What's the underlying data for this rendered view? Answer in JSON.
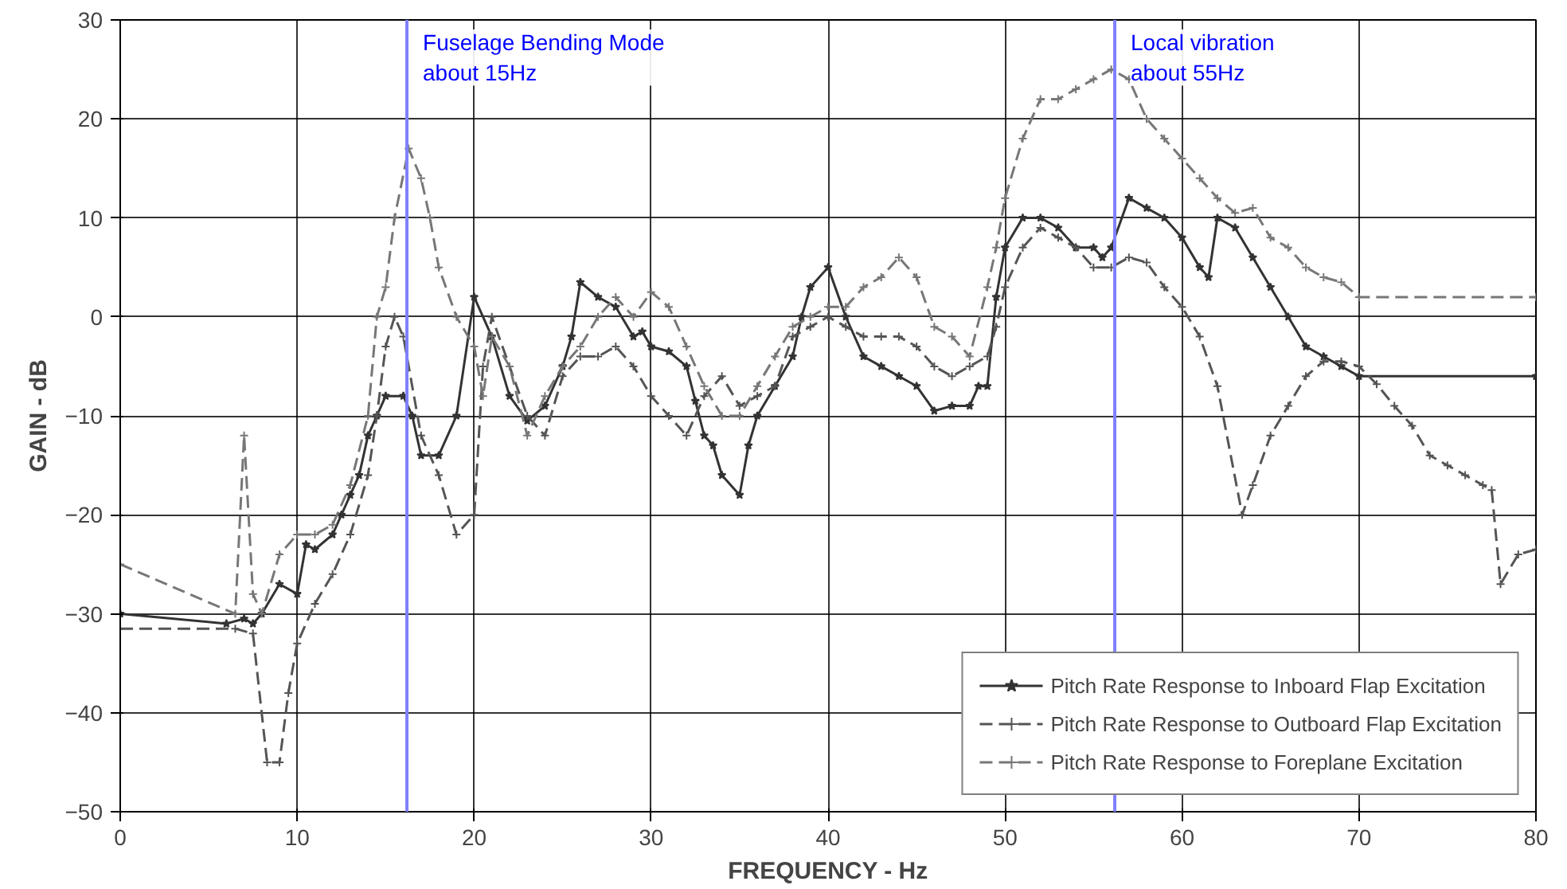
{
  "chart_data": {
    "type": "line",
    "xlabel": "FREQUENCY - Hz",
    "ylabel": "GAIN - dB",
    "xlim": [
      0,
      80
    ],
    "ylim": [
      -50,
      30
    ],
    "xticks": [
      0,
      10,
      20,
      30,
      40,
      50,
      60,
      70,
      80
    ],
    "yticks": [
      -50,
      -40,
      -30,
      -20,
      -10,
      0,
      10,
      20,
      30
    ],
    "grid": true,
    "legend": "bottom right",
    "ref_lines": [
      {
        "axis": "x",
        "value": 16.2,
        "label": "Fuselage Bending Mode\nabout 15Hz",
        "color": "#8080ff"
      },
      {
        "axis": "x",
        "value": 56.2,
        "label": "Local vibration\nabout 55Hz",
        "color": "#8080ff"
      }
    ],
    "series": [
      {
        "name": "Pitch Rate Response to Inboard Flap Excitation",
        "color": "#333333",
        "line_style": "solid",
        "marker": "star",
        "x": [
          0,
          6,
          7,
          7.5,
          8,
          9,
          10,
          10.5,
          11,
          12,
          12.5,
          13,
          13.5,
          14,
          14.5,
          15,
          16,
          16.5,
          17,
          18,
          19,
          20,
          21,
          22,
          23,
          24,
          25,
          25.5,
          26,
          27,
          28,
          29,
          29.5,
          30,
          31,
          32,
          32.5,
          33,
          33.5,
          34,
          35,
          35.5,
          36,
          37,
          38,
          38.5,
          39,
          40,
          41,
          42,
          43,
          44,
          45,
          46,
          47,
          48,
          48.5,
          49,
          49.5,
          50,
          51,
          52,
          53,
          54,
          55,
          55.5,
          56,
          57,
          58,
          59,
          60,
          61,
          61.5,
          62,
          63,
          64,
          65,
          66,
          67,
          68,
          69,
          70,
          80
        ],
        "values": [
          -30,
          -31,
          -30.5,
          -31,
          -30,
          -27,
          -28,
          -23,
          -23.5,
          -22,
          -20,
          -18,
          -16,
          -12,
          -10,
          -8,
          -8,
          -10,
          -14,
          -14,
          -10,
          2,
          -2,
          -8,
          -10.5,
          -9,
          -5,
          -2,
          3.5,
          2,
          1,
          -2,
          -1.5,
          -3,
          -3.5,
          -5,
          -8.5,
          -12,
          -13,
          -16,
          -18,
          -13,
          -10,
          -7,
          -4,
          0,
          3,
          5,
          0,
          -4,
          -5,
          -6,
          -7,
          -9.5,
          -9,
          -9,
          -7,
          -7,
          2,
          7,
          10,
          10,
          9,
          7,
          7,
          6,
          7,
          12,
          11,
          10,
          8,
          5,
          4,
          10,
          9,
          6,
          3,
          0,
          -3,
          -4,
          -5,
          -6,
          -6
        ]
      },
      {
        "name": "Pitch Rate Response to Outboard Flap Excitation",
        "color": "#555555",
        "line_style": "dashed",
        "marker": "cross",
        "x": [
          0,
          6.5,
          7.5,
          8.3,
          9,
          9.5,
          10,
          11,
          12,
          13,
          14,
          14.5,
          15,
          15.5,
          16,
          17,
          18,
          19,
          20,
          20.5,
          21,
          22,
          23,
          24,
          25,
          26,
          27,
          28,
          29,
          30,
          31,
          32,
          33,
          34,
          35,
          36,
          37,
          38,
          39,
          40,
          41,
          42,
          43,
          44,
          45,
          46,
          47,
          48,
          49,
          49.5,
          50,
          51,
          52,
          53,
          54,
          55,
          56,
          57,
          58,
          59,
          60,
          61,
          62,
          63.4,
          64,
          65,
          66,
          67,
          68,
          69,
          70,
          71,
          72,
          73,
          74,
          75,
          76,
          77,
          77.5,
          78,
          79,
          80
        ],
        "values": [
          -31.5,
          -31.5,
          -32,
          -45,
          -45,
          -38,
          -33,
          -29,
          -26,
          -22,
          -16,
          -10,
          -3,
          0,
          -2,
          -12,
          -16,
          -22,
          -20,
          -5,
          0,
          -5,
          -10,
          -12,
          -6,
          -4,
          -4,
          -3,
          -5,
          -8,
          -10,
          -12,
          -8,
          -6,
          -9,
          -8,
          -7,
          -2,
          -1,
          0,
          -1,
          -2,
          -2,
          -2,
          -3,
          -5,
          -6,
          -5,
          -4,
          -1,
          3,
          7,
          9,
          8,
          7,
          5,
          5,
          6,
          5.5,
          3,
          1,
          -2,
          -7,
          -20,
          -17,
          -12,
          -9,
          -6,
          -4.5,
          -4.5,
          -5,
          -6.8,
          -9,
          -11,
          -14,
          -15,
          -16,
          -17,
          -17.5,
          -27,
          -24,
          -23.5
        ]
      },
      {
        "name": "Pitch Rate Response to Foreplane Excitation",
        "color": "#777777",
        "line_style": "dashed",
        "marker": "cross",
        "x": [
          0,
          6.5,
          7,
          7.5,
          8,
          9,
          10,
          11,
          12,
          13,
          14,
          14.5,
          15,
          15.5,
          16.3,
          17,
          17.5,
          18,
          19,
          20,
          20.5,
          21,
          22,
          23,
          24,
          25,
          26,
          27,
          28,
          29,
          30,
          31,
          32,
          33,
          34,
          35,
          36,
          37,
          38,
          39,
          40,
          41,
          42,
          43,
          44,
          45,
          46,
          47,
          48,
          49,
          49.5,
          50,
          51,
          52,
          53,
          54,
          55,
          56,
          57,
          58,
          59,
          60,
          61,
          62,
          63,
          64,
          65,
          66,
          67,
          68,
          69,
          70,
          80
        ],
        "values": [
          -25,
          -30,
          -12,
          -28,
          -30,
          -24,
          -22,
          -22,
          -21,
          -17,
          -10,
          0,
          3,
          10,
          17,
          14,
          10,
          5,
          0,
          -3,
          -8,
          -2,
          -5,
          -12,
          -8,
          -5,
          -3,
          0,
          2,
          0,
          2.5,
          1,
          -3,
          -7,
          -10,
          -10,
          -7,
          -4,
          -1,
          0,
          1,
          1,
          3,
          4,
          6,
          4,
          -1,
          -2,
          -4,
          3,
          7,
          12,
          18,
          22,
          22,
          23,
          24,
          25,
          24,
          20,
          18,
          16,
          14,
          12,
          10.5,
          11,
          8,
          7,
          5,
          4,
          3.5,
          2,
          2
        ]
      }
    ]
  }
}
